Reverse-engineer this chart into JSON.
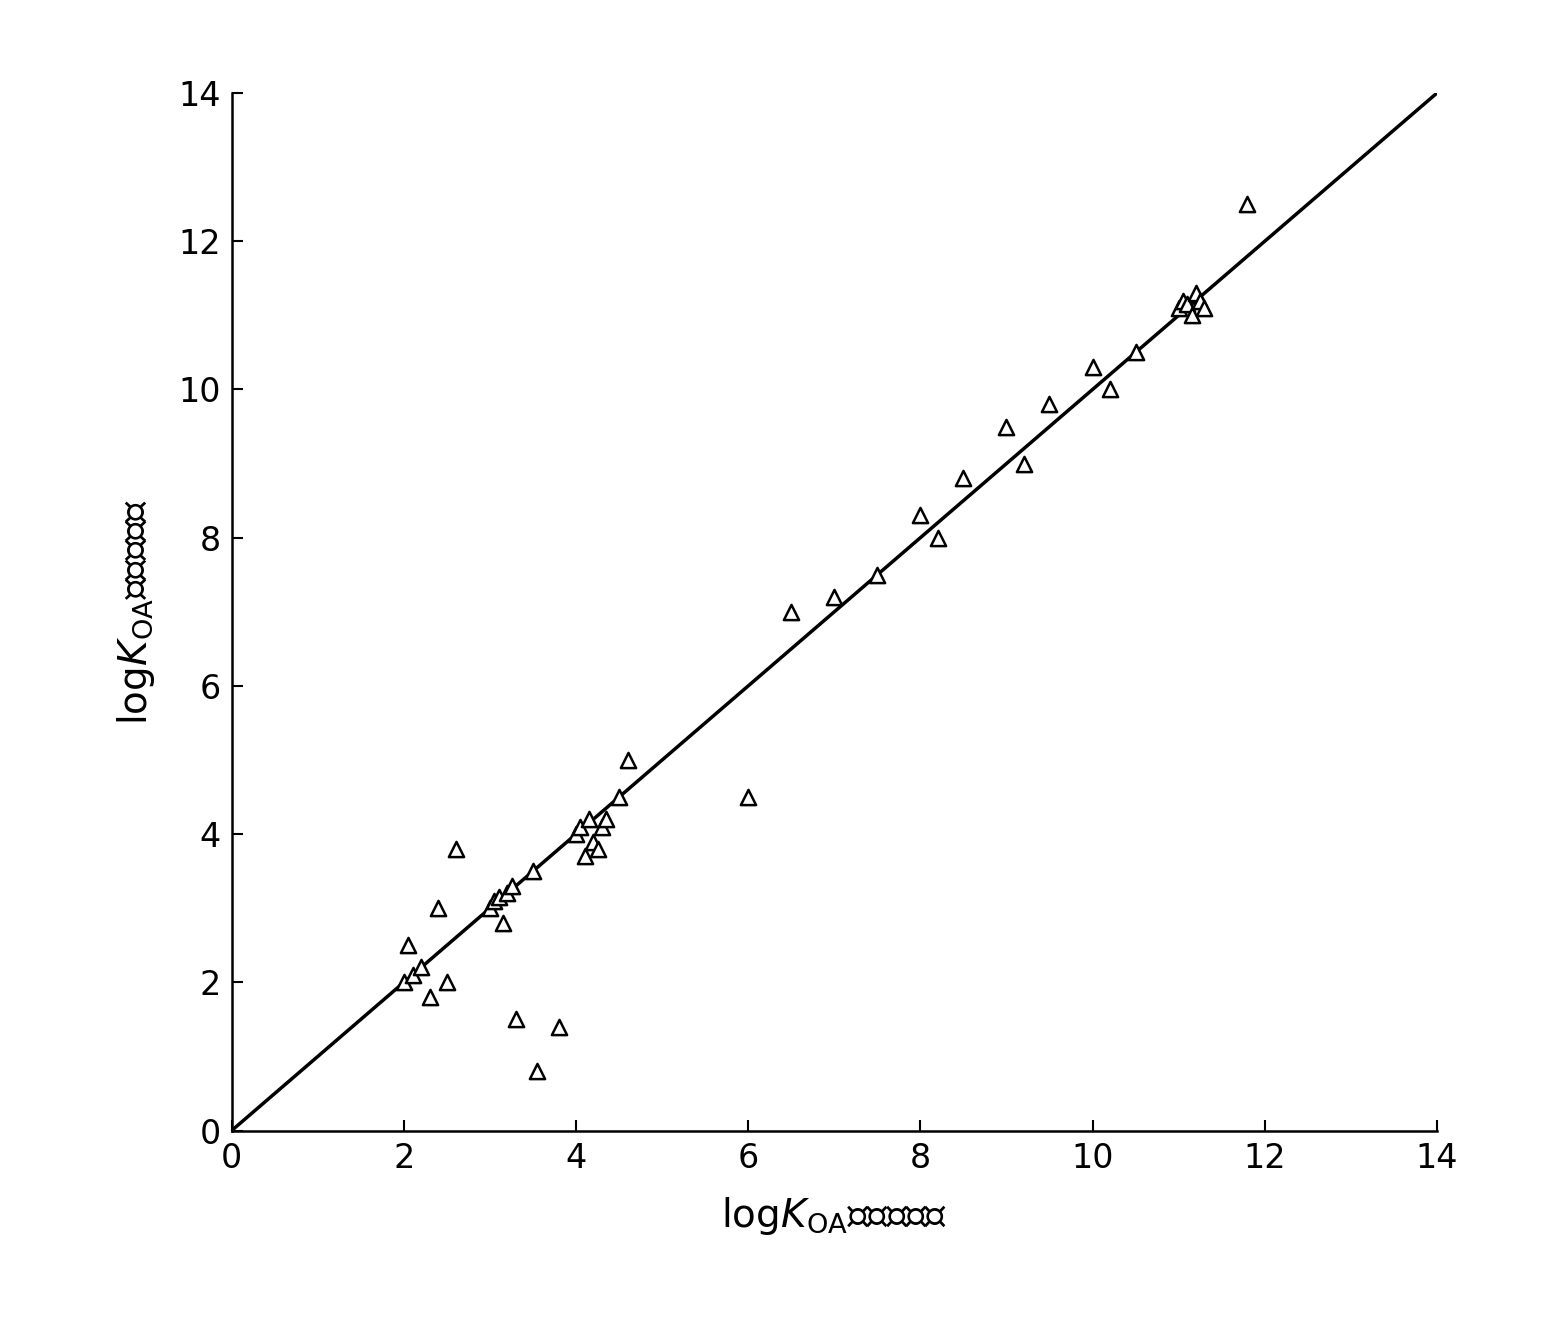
{
  "x_data": [
    2.0,
    2.05,
    2.1,
    2.2,
    2.3,
    2.4,
    2.5,
    2.6,
    3.0,
    3.05,
    3.1,
    3.15,
    3.2,
    3.25,
    3.3,
    3.5,
    3.55,
    4.0,
    4.05,
    4.1,
    4.15,
    4.2,
    4.25,
    4.3,
    4.35,
    4.5,
    3.8,
    4.6,
    6.0,
    6.5,
    7.0,
    7.5,
    8.0,
    8.2,
    8.5,
    9.0,
    9.2,
    9.5,
    10.0,
    10.2,
    10.5,
    11.0,
    11.05,
    11.1,
    11.15,
    11.2,
    11.25,
    11.3,
    11.8
  ],
  "y_data": [
    2.0,
    2.5,
    2.1,
    2.2,
    1.8,
    3.0,
    2.0,
    3.8,
    3.0,
    3.1,
    3.15,
    2.8,
    3.2,
    3.3,
    1.5,
    3.5,
    0.8,
    4.0,
    4.1,
    3.7,
    4.2,
    3.9,
    3.8,
    4.1,
    4.2,
    4.5,
    1.4,
    5.0,
    4.5,
    7.0,
    7.2,
    7.5,
    8.3,
    8.0,
    8.8,
    9.5,
    9.0,
    9.8,
    10.3,
    10.0,
    10.5,
    11.1,
    11.2,
    11.15,
    11.0,
    11.3,
    11.2,
    11.1,
    12.5
  ],
  "line_x": [
    0,
    14
  ],
  "line_y": [
    0,
    14
  ],
  "xlim": [
    0,
    14
  ],
  "ylim": [
    0,
    14
  ],
  "xticks": [
    0,
    2,
    4,
    6,
    8,
    10,
    12,
    14
  ],
  "yticks": [
    0,
    2,
    4,
    6,
    8,
    10,
    12,
    14
  ],
  "tick_fontsize": 24,
  "label_fontsize": 28,
  "marker_size": 120,
  "marker_linewidth": 1.8,
  "line_color": "#000000",
  "line_width": 2.5,
  "background_color": "#ffffff"
}
